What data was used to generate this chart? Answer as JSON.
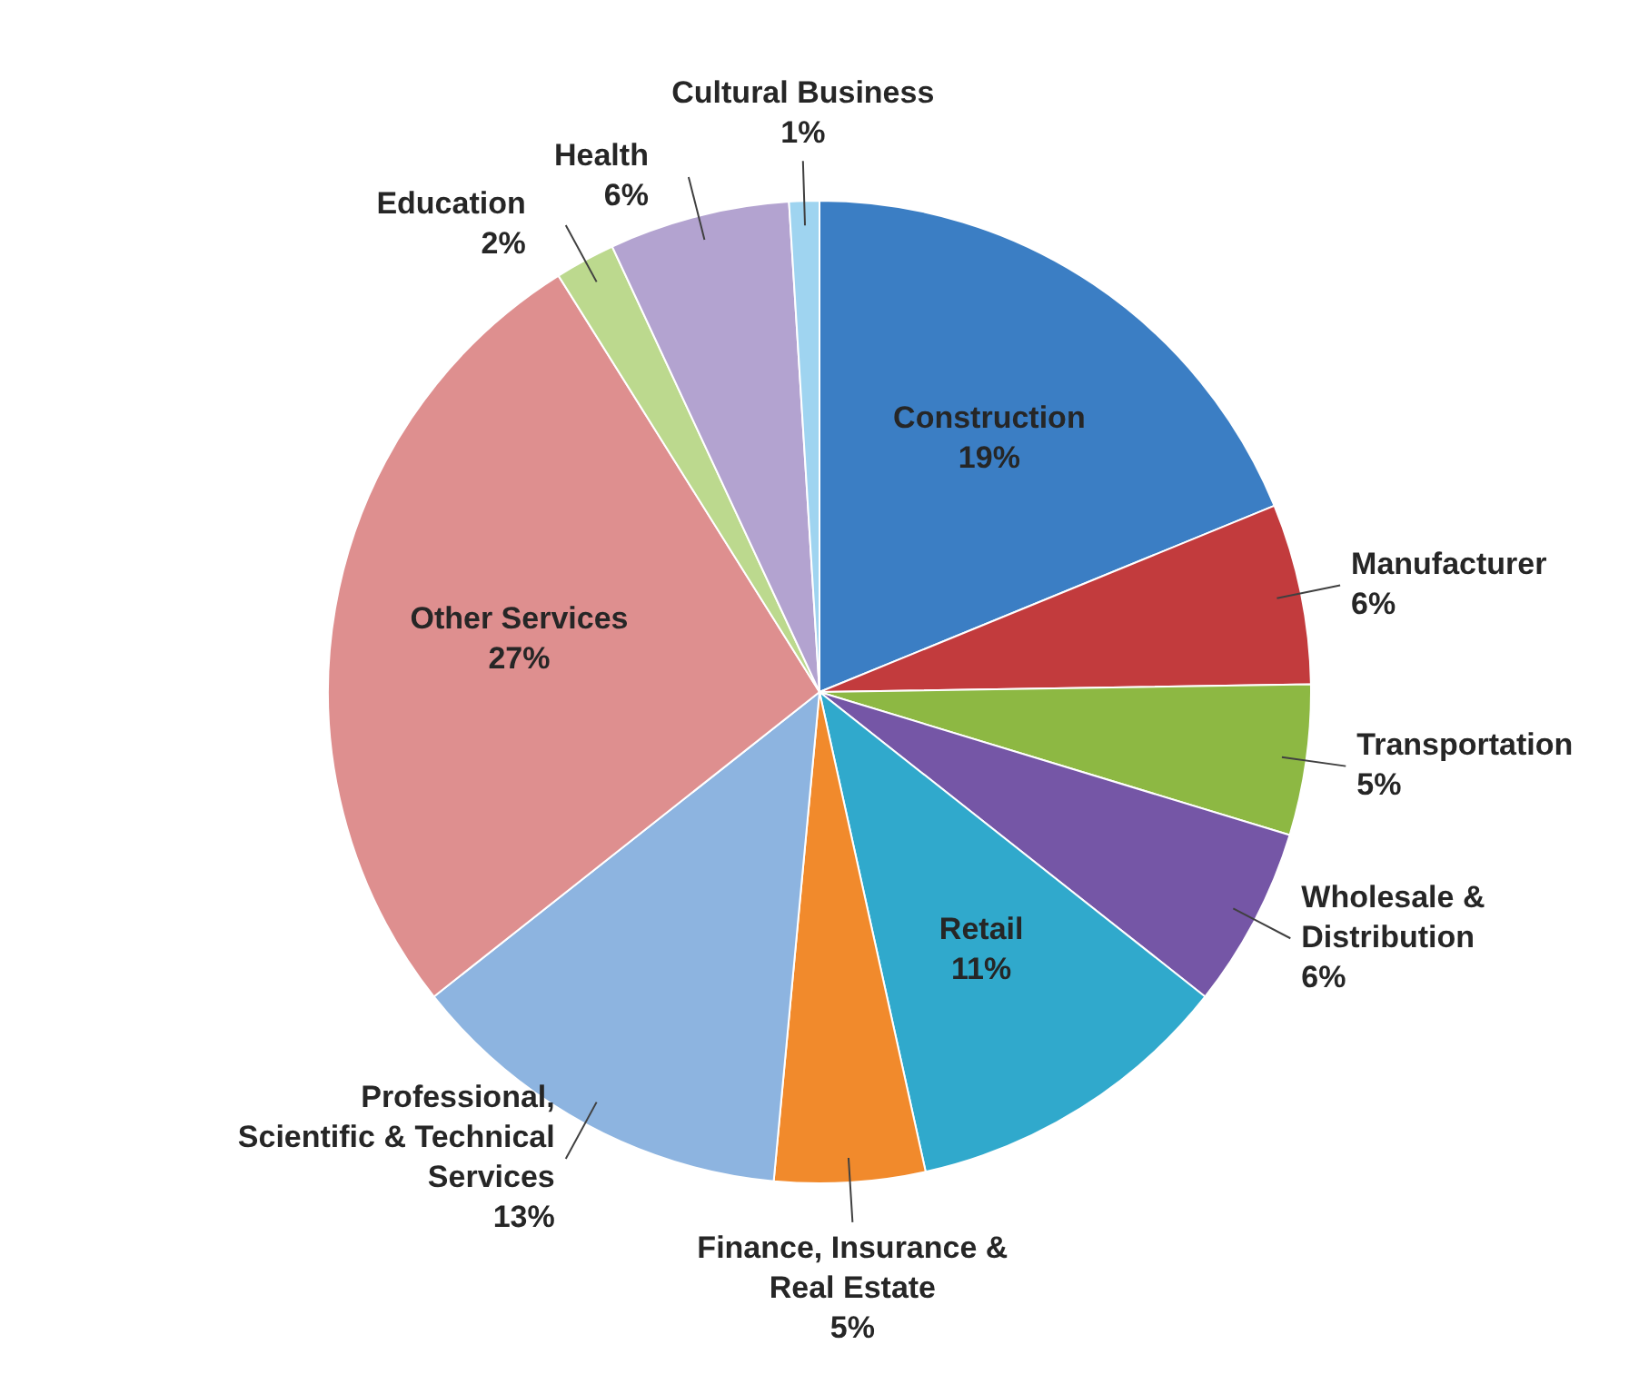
{
  "chart_data": {
    "type": "pie",
    "categories": [
      "Construction",
      "Manufacturer",
      "Transportation",
      "Wholesale & Distribution",
      "Retail",
      "Finance, Insurance & Real Estate",
      "Professional, Scientific & Technical Services",
      "Other Services",
      "Education",
      "Health",
      "Cultural Business"
    ],
    "values": [
      19,
      6,
      5,
      6,
      11,
      5,
      13,
      27,
      2,
      6,
      1
    ],
    "value_labels": [
      "19%",
      "6%",
      "5%",
      "6%",
      "11%",
      "5%",
      "13%",
      "27%",
      "2%",
      "6%",
      "1%"
    ],
    "colors": [
      "#3b7ec4",
      "#c23b3d",
      "#8db843",
      "#7556a6",
      "#30a9cc",
      "#f18a2c",
      "#8db4e0",
      "#de8f8f",
      "#bcd98e",
      "#b3a3d0",
      "#9fd4f0"
    ],
    "legend": false
  }
}
